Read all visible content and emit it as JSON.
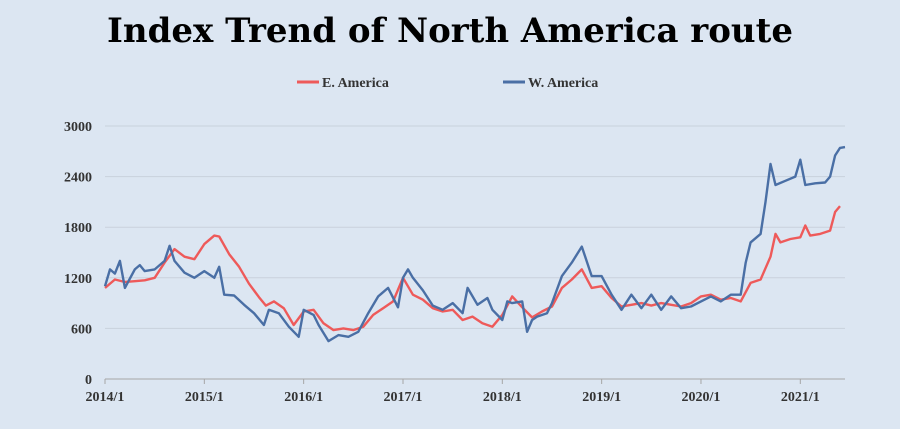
{
  "title": "Index Trend of North America route",
  "chart_data": {
    "type": "line",
    "title": "Index Trend of North America route",
    "xlabel": "",
    "ylabel": "",
    "ylim": [
      0,
      3000
    ],
    "yticks": [
      "0",
      "600",
      "1200",
      "1800",
      "2400",
      "3000"
    ],
    "xlim": [
      2014.0,
      2021.45
    ],
    "xticks": [
      "2014/1",
      "2015/1",
      "2016/1",
      "2017/1",
      "2018/1",
      "2019/1",
      "2020/1",
      "2021/1"
    ],
    "grid": "horizontal",
    "legend_position": "top",
    "series": [
      {
        "name": "E. America",
        "color": "#ee5a5a",
        "points": [
          [
            2014.0,
            1080
          ],
          [
            2014.1,
            1180
          ],
          [
            2014.2,
            1150
          ],
          [
            2014.3,
            1160
          ],
          [
            2014.4,
            1170
          ],
          [
            2014.5,
            1200
          ],
          [
            2014.6,
            1380
          ],
          [
            2014.7,
            1540
          ],
          [
            2014.8,
            1450
          ],
          [
            2014.9,
            1420
          ],
          [
            2015.0,
            1600
          ],
          [
            2015.1,
            1700
          ],
          [
            2015.15,
            1690
          ],
          [
            2015.25,
            1480
          ],
          [
            2015.35,
            1330
          ],
          [
            2015.45,
            1130
          ],
          [
            2015.55,
            970
          ],
          [
            2015.62,
            870
          ],
          [
            2015.7,
            920
          ],
          [
            2015.8,
            840
          ],
          [
            2015.9,
            640
          ],
          [
            2016.0,
            800
          ],
          [
            2016.1,
            820
          ],
          [
            2016.2,
            660
          ],
          [
            2016.3,
            580
          ],
          [
            2016.4,
            600
          ],
          [
            2016.5,
            580
          ],
          [
            2016.6,
            620
          ],
          [
            2016.7,
            760
          ],
          [
            2016.8,
            840
          ],
          [
            2016.9,
            920
          ],
          [
            2017.0,
            1200
          ],
          [
            2017.1,
            1000
          ],
          [
            2017.2,
            940
          ],
          [
            2017.3,
            840
          ],
          [
            2017.4,
            800
          ],
          [
            2017.5,
            820
          ],
          [
            2017.6,
            700
          ],
          [
            2017.7,
            740
          ],
          [
            2017.8,
            660
          ],
          [
            2017.9,
            620
          ],
          [
            2018.0,
            760
          ],
          [
            2018.1,
            980
          ],
          [
            2018.2,
            850
          ],
          [
            2018.3,
            730
          ],
          [
            2018.4,
            800
          ],
          [
            2018.5,
            860
          ],
          [
            2018.6,
            1080
          ],
          [
            2018.7,
            1180
          ],
          [
            2018.8,
            1300
          ],
          [
            2018.9,
            1080
          ],
          [
            2019.0,
            1100
          ],
          [
            2019.1,
            960
          ],
          [
            2019.2,
            860
          ],
          [
            2019.3,
            880
          ],
          [
            2019.4,
            900
          ],
          [
            2019.5,
            870
          ],
          [
            2019.6,
            900
          ],
          [
            2019.7,
            880
          ],
          [
            2019.8,
            860
          ],
          [
            2019.9,
            900
          ],
          [
            2020.0,
            980
          ],
          [
            2020.1,
            1000
          ],
          [
            2020.2,
            940
          ],
          [
            2020.3,
            960
          ],
          [
            2020.4,
            920
          ],
          [
            2020.5,
            1140
          ],
          [
            2020.6,
            1180
          ],
          [
            2020.7,
            1450
          ],
          [
            2020.75,
            1720
          ],
          [
            2020.8,
            1620
          ],
          [
            2020.9,
            1660
          ],
          [
            2021.0,
            1680
          ],
          [
            2021.05,
            1820
          ],
          [
            2021.1,
            1700
          ],
          [
            2021.2,
            1720
          ],
          [
            2021.3,
            1760
          ],
          [
            2021.35,
            1980
          ],
          [
            2021.4,
            2050
          ]
        ]
      },
      {
        "name": "W. America",
        "color": "#4a6fa5",
        "points": [
          [
            2014.0,
            1100
          ],
          [
            2014.05,
            1300
          ],
          [
            2014.1,
            1250
          ],
          [
            2014.15,
            1400
          ],
          [
            2014.2,
            1080
          ],
          [
            2014.3,
            1300
          ],
          [
            2014.35,
            1350
          ],
          [
            2014.4,
            1280
          ],
          [
            2014.5,
            1300
          ],
          [
            2014.6,
            1400
          ],
          [
            2014.65,
            1580
          ],
          [
            2014.7,
            1400
          ],
          [
            2014.8,
            1260
          ],
          [
            2014.9,
            1200
          ],
          [
            2015.0,
            1280
          ],
          [
            2015.1,
            1200
          ],
          [
            2015.15,
            1330
          ],
          [
            2015.2,
            1000
          ],
          [
            2015.3,
            990
          ],
          [
            2015.4,
            880
          ],
          [
            2015.5,
            780
          ],
          [
            2015.6,
            640
          ],
          [
            2015.65,
            820
          ],
          [
            2015.75,
            780
          ],
          [
            2015.85,
            620
          ],
          [
            2015.95,
            500
          ],
          [
            2016.0,
            820
          ],
          [
            2016.1,
            760
          ],
          [
            2016.15,
            640
          ],
          [
            2016.25,
            450
          ],
          [
            2016.35,
            520
          ],
          [
            2016.45,
            500
          ],
          [
            2016.55,
            560
          ],
          [
            2016.65,
            780
          ],
          [
            2016.75,
            980
          ],
          [
            2016.85,
            1080
          ],
          [
            2016.95,
            850
          ],
          [
            2017.0,
            1200
          ],
          [
            2017.05,
            1300
          ],
          [
            2017.1,
            1200
          ],
          [
            2017.2,
            1050
          ],
          [
            2017.3,
            870
          ],
          [
            2017.4,
            820
          ],
          [
            2017.5,
            900
          ],
          [
            2017.6,
            780
          ],
          [
            2017.65,
            1080
          ],
          [
            2017.75,
            880
          ],
          [
            2017.85,
            960
          ],
          [
            2017.9,
            820
          ],
          [
            2018.0,
            700
          ],
          [
            2018.05,
            920
          ],
          [
            2018.1,
            900
          ],
          [
            2018.2,
            920
          ],
          [
            2018.25,
            560
          ],
          [
            2018.3,
            700
          ],
          [
            2018.35,
            740
          ],
          [
            2018.45,
            780
          ],
          [
            2018.5,
            900
          ],
          [
            2018.6,
            1220
          ],
          [
            2018.7,
            1380
          ],
          [
            2018.8,
            1570
          ],
          [
            2018.9,
            1220
          ],
          [
            2019.0,
            1220
          ],
          [
            2019.1,
            1000
          ],
          [
            2019.2,
            820
          ],
          [
            2019.3,
            1000
          ],
          [
            2019.4,
            840
          ],
          [
            2019.5,
            1000
          ],
          [
            2019.6,
            820
          ],
          [
            2019.7,
            980
          ],
          [
            2019.8,
            840
          ],
          [
            2019.9,
            860
          ],
          [
            2020.0,
            920
          ],
          [
            2020.1,
            980
          ],
          [
            2020.2,
            920
          ],
          [
            2020.3,
            1000
          ],
          [
            2020.4,
            1000
          ],
          [
            2020.45,
            1380
          ],
          [
            2020.5,
            1620
          ],
          [
            2020.6,
            1720
          ],
          [
            2020.65,
            2100
          ],
          [
            2020.7,
            2550
          ],
          [
            2020.75,
            2300
          ],
          [
            2020.85,
            2350
          ],
          [
            2020.95,
            2400
          ],
          [
            2021.0,
            2600
          ],
          [
            2021.05,
            2300
          ],
          [
            2021.15,
            2320
          ],
          [
            2021.25,
            2330
          ],
          [
            2021.3,
            2400
          ],
          [
            2021.35,
            2650
          ],
          [
            2021.4,
            2740
          ],
          [
            2021.45,
            2750
          ]
        ]
      }
    ]
  }
}
